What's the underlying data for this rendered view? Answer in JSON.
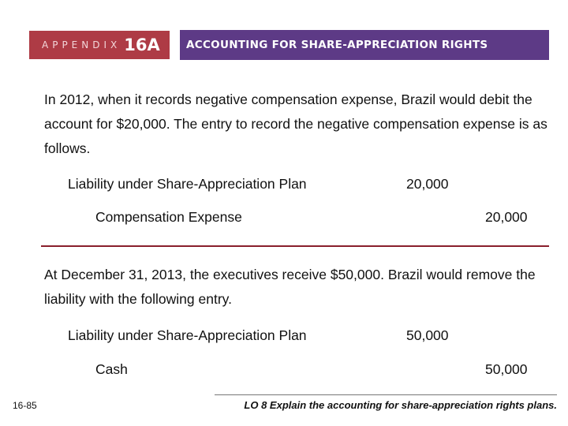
{
  "header": {
    "appendix_word": "APPENDIX",
    "appendix_number": "16A",
    "title": "ACCOUNTING FOR SHARE-APPRECIATION RIGHTS",
    "colors": {
      "appendix_bg": "#ae3b45",
      "title_bg": "#5d3a86"
    }
  },
  "section1": {
    "paragraph": "In 2012, when it records negative compensation expense, Brazil would debit the account for $20,000. The entry to record the negative compensation expense is as follows.",
    "entry": {
      "debit_account": "Liability under Share-Appreciation Plan",
      "debit_amount": "20,000",
      "credit_account": "Compensation Expense",
      "credit_amount": "20,000"
    }
  },
  "section2": {
    "paragraph": "At December 31, 2013, the executives receive $50,000. Brazil would remove the liability with the following entry.",
    "entry": {
      "debit_account": "Liability under Share-Appreciation Plan",
      "debit_amount": "50,000",
      "credit_account": "Cash",
      "credit_amount": "50,000"
    }
  },
  "footer": {
    "page_number": "16-85",
    "learning_objective": "LO 8  Explain the accounting for share-appreciation rights plans."
  },
  "colors": {
    "divider": "#8a1f2c"
  }
}
